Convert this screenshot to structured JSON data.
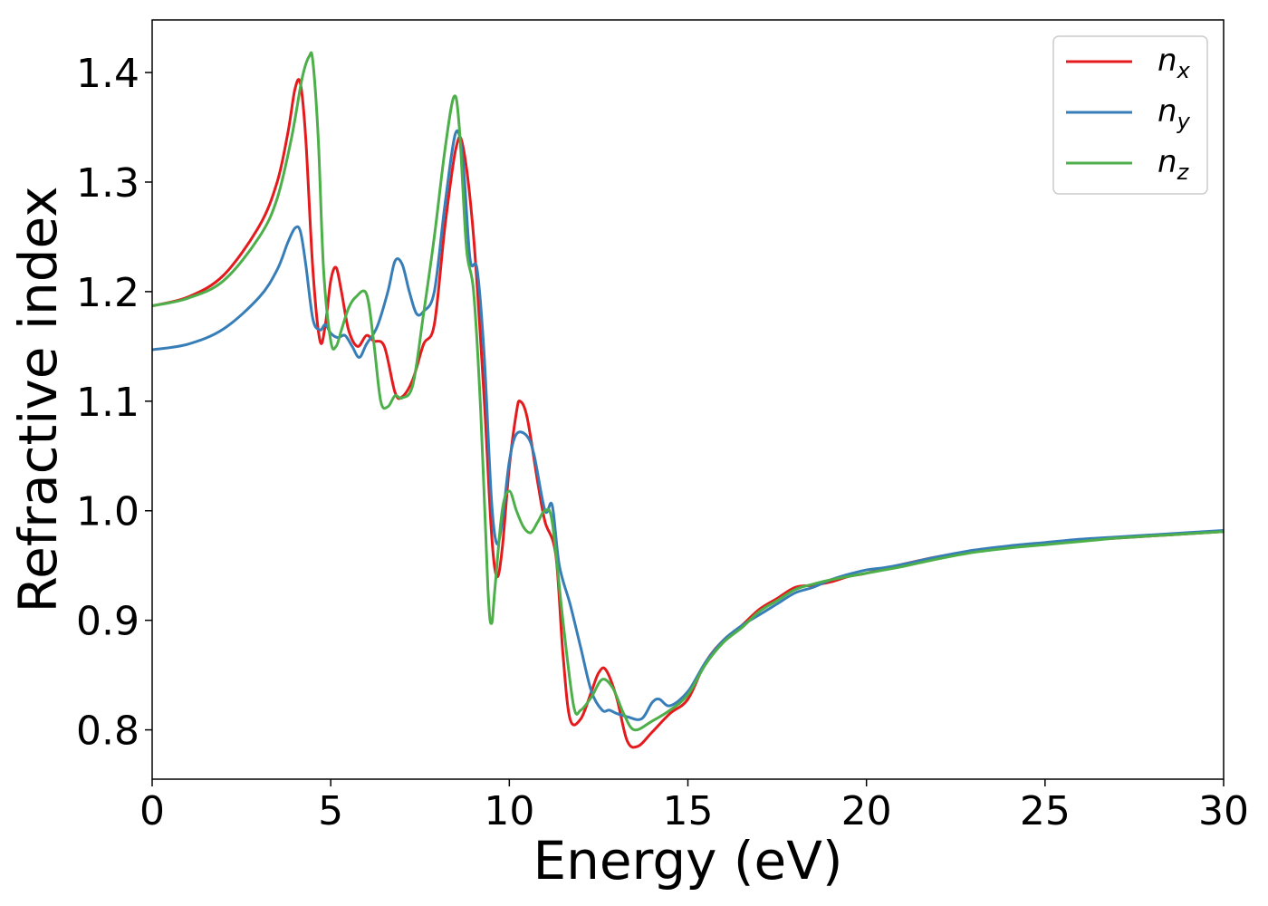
{
  "chart_data": {
    "type": "line",
    "title": "",
    "xlabel": "Energy (eV)",
    "ylabel": "Refractive index",
    "xlim": [
      0,
      30
    ],
    "ylim": [
      0.755,
      1.448
    ],
    "xticks": [
      "0",
      "5",
      "10",
      "15",
      "20",
      "25",
      "30"
    ],
    "yticks": [
      "0.8",
      "0.9",
      "1.0",
      "1.1",
      "1.2",
      "1.3",
      "1.4"
    ],
    "grid": false,
    "legend_position": "top-right",
    "series": [
      {
        "name": "n",
        "subscript": "x",
        "color": "#e41a1c",
        "x": [
          0,
          1,
          2,
          3,
          3.5,
          3.8,
          4.0,
          4.15,
          4.3,
          4.5,
          4.7,
          4.85,
          5.0,
          5.15,
          5.3,
          5.5,
          5.75,
          6.0,
          6.2,
          6.5,
          6.8,
          7.0,
          7.3,
          7.6,
          7.9,
          8.2,
          8.5,
          8.7,
          9.0,
          9.3,
          9.5,
          9.65,
          9.8,
          10.0,
          10.2,
          10.3,
          10.5,
          10.8,
          11.0,
          11.3,
          11.5,
          11.7,
          12.0,
          12.3,
          12.5,
          12.7,
          13.0,
          13.3,
          13.6,
          14.0,
          14.5,
          15.0,
          15.5,
          16.0,
          16.5,
          17.0,
          17.5,
          18.0,
          18.5,
          19.0,
          19.5,
          20.0,
          21.0,
          22.0,
          23.0,
          24.0,
          25.0,
          26.0,
          27.0,
          28.0,
          29.0,
          30.0
        ],
        "y": [
          1.187,
          1.195,
          1.215,
          1.26,
          1.3,
          1.345,
          1.385,
          1.39,
          1.34,
          1.22,
          1.155,
          1.17,
          1.21,
          1.222,
          1.2,
          1.165,
          1.15,
          1.16,
          1.155,
          1.15,
          1.108,
          1.104,
          1.12,
          1.152,
          1.17,
          1.26,
          1.33,
          1.333,
          1.25,
          1.1,
          0.98,
          0.94,
          0.965,
          1.04,
          1.09,
          1.1,
          1.085,
          1.025,
          0.99,
          0.96,
          0.87,
          0.81,
          0.81,
          0.835,
          0.852,
          0.855,
          0.83,
          0.79,
          0.785,
          0.798,
          0.815,
          0.828,
          0.862,
          0.882,
          0.895,
          0.91,
          0.92,
          0.93,
          0.932,
          0.935,
          0.94,
          0.943,
          0.951,
          0.958,
          0.963,
          0.967,
          0.97,
          0.973,
          0.975,
          0.977,
          0.979,
          0.981
        ]
      },
      {
        "name": "n",
        "subscript": "y",
        "color": "#377eb8",
        "x": [
          0,
          1,
          2,
          3,
          3.5,
          3.8,
          4.0,
          4.15,
          4.3,
          4.5,
          4.7,
          4.85,
          5.0,
          5.2,
          5.4,
          5.6,
          5.8,
          6.0,
          6.3,
          6.6,
          6.8,
          7.0,
          7.2,
          7.4,
          7.6,
          7.9,
          8.2,
          8.5,
          8.7,
          8.9,
          9.1,
          9.3,
          9.5,
          9.65,
          9.8,
          10.0,
          10.2,
          10.5,
          10.7,
          11.0,
          11.2,
          11.4,
          11.7,
          12.0,
          12.3,
          12.6,
          12.8,
          13.0,
          13.3,
          13.7,
          14.0,
          14.2,
          14.5,
          15.0,
          15.5,
          16.0,
          16.5,
          17.0,
          17.5,
          18.0,
          18.5,
          19.0,
          19.5,
          20.0,
          20.5,
          21.0,
          22.0,
          23.0,
          24.0,
          25.0,
          26.0,
          27.0,
          28.0,
          29.0,
          30.0
        ],
        "y": [
          1.147,
          1.152,
          1.166,
          1.195,
          1.22,
          1.245,
          1.258,
          1.255,
          1.225,
          1.175,
          1.165,
          1.17,
          1.162,
          1.158,
          1.16,
          1.15,
          1.14,
          1.152,
          1.168,
          1.2,
          1.228,
          1.225,
          1.2,
          1.18,
          1.182,
          1.2,
          1.28,
          1.345,
          1.32,
          1.23,
          1.22,
          1.14,
          1.01,
          0.97,
          0.99,
          1.045,
          1.07,
          1.068,
          1.05,
          1.0,
          1.005,
          0.95,
          0.915,
          0.875,
          0.835,
          0.818,
          0.818,
          0.815,
          0.812,
          0.81,
          0.825,
          0.828,
          0.822,
          0.835,
          0.862,
          0.882,
          0.895,
          0.905,
          0.915,
          0.925,
          0.93,
          0.937,
          0.942,
          0.946,
          0.948,
          0.951,
          0.958,
          0.964,
          0.968,
          0.971,
          0.974,
          0.976,
          0.978,
          0.98,
          0.982
        ]
      },
      {
        "name": "n",
        "subscript": "z",
        "color": "#4daf4a",
        "x": [
          0,
          1,
          2,
          3,
          3.5,
          3.9,
          4.2,
          4.4,
          4.5,
          4.65,
          4.8,
          5.0,
          5.15,
          5.3,
          5.5,
          5.7,
          6.0,
          6.2,
          6.4,
          6.6,
          6.8,
          7.0,
          7.3,
          7.6,
          7.9,
          8.2,
          8.45,
          8.6,
          8.8,
          9.0,
          9.2,
          9.4,
          9.5,
          9.6,
          9.8,
          10.0,
          10.2,
          10.4,
          10.6,
          10.8,
          11.0,
          11.2,
          11.5,
          11.8,
          12.0,
          12.3,
          12.6,
          12.9,
          13.2,
          13.5,
          14.0,
          14.5,
          15.0,
          15.5,
          16.0,
          16.5,
          17.0,
          17.5,
          18.0,
          18.5,
          19.0,
          20.0,
          20.5,
          21.0,
          22.0,
          23.0,
          24.0,
          25.0,
          26.0,
          27.0,
          28.0,
          29.0,
          30.0
        ],
        "y": [
          1.187,
          1.194,
          1.21,
          1.25,
          1.285,
          1.34,
          1.395,
          1.415,
          1.41,
          1.34,
          1.22,
          1.155,
          1.15,
          1.165,
          1.185,
          1.195,
          1.198,
          1.155,
          1.1,
          1.095,
          1.105,
          1.103,
          1.115,
          1.18,
          1.25,
          1.33,
          1.378,
          1.35,
          1.24,
          1.2,
          1.09,
          0.93,
          0.897,
          0.93,
          1.0,
          1.018,
          1.0,
          0.985,
          0.98,
          0.99,
          1.0,
          0.99,
          0.9,
          0.822,
          0.818,
          0.83,
          0.846,
          0.838,
          0.815,
          0.8,
          0.808,
          0.818,
          0.832,
          0.86,
          0.88,
          0.893,
          0.908,
          0.918,
          0.928,
          0.933,
          0.937,
          0.943,
          0.946,
          0.949,
          0.956,
          0.962,
          0.966,
          0.969,
          0.972,
          0.975,
          0.977,
          0.979,
          0.981
        ]
      }
    ]
  }
}
